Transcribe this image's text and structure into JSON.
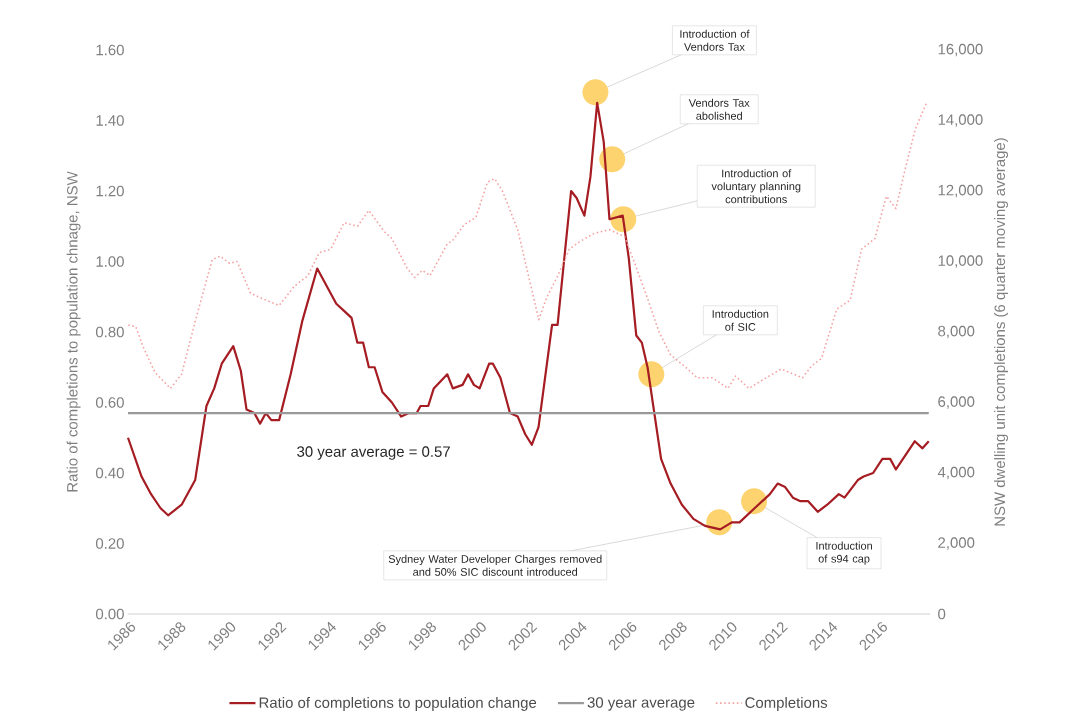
{
  "chart_data": {
    "type": "line",
    "xlabel": null,
    "ylabel": "Ratio of completions to population chnage, NSW",
    "y2label": "NSW dwelling unit completions (6 quarter moving average)",
    "xlim": [
      1986,
      2018
    ],
    "xticks": [
      1986,
      1988,
      1990,
      1992,
      1994,
      1996,
      1998,
      2000,
      2002,
      2004,
      2006,
      2008,
      2010,
      2012,
      2014,
      2016
    ],
    "ylim": [
      0,
      1.6
    ],
    "yticks": [
      {
        "value": 0,
        "label": "0.00"
      },
      {
        "value": 0.2,
        "label": "0.20"
      },
      {
        "value": 0.4,
        "label": "0.40"
      },
      {
        "value": 0.6,
        "label": "0.60"
      },
      {
        "value": 0.8,
        "label": "0.80"
      },
      {
        "value": 1.0,
        "label": "1.00"
      },
      {
        "value": 1.2,
        "label": "1.20"
      },
      {
        "value": 1.4,
        "label": "1.40"
      },
      {
        "value": 1.6,
        "label": "1.60"
      }
    ],
    "y2lim": [
      0,
      16000
    ],
    "y2ticks": [
      0,
      {
        "value": 2000,
        "label": "2,000"
      },
      {
        "value": 4000,
        "label": "4,000"
      },
      {
        "value": 6000,
        "label": "6,000"
      },
      {
        "value": 8000,
        "label": "8,000"
      },
      {
        "value": 10000,
        "label": "10,000"
      },
      {
        "value": 12000,
        "label": "12,000"
      },
      {
        "value": 14000,
        "label": "14,000"
      },
      {
        "value": 16000,
        "label": "16,000"
      }
    ],
    "legend": "bottom",
    "series": [
      {
        "name": "Ratio of completions to population change",
        "color": "#a51c22",
        "line_style": "solid",
        "x": [
          1986.0,
          1986.54,
          1986.92,
          1987.3,
          1987.6,
          1988.14,
          1988.68,
          1989.13,
          1989.44,
          1989.74,
          1990.2,
          1990.5,
          1990.73,
          1991.04,
          1991.27,
          1991.5,
          1991.72,
          1992.03,
          1992.49,
          1992.95,
          1993.55,
          1994.31,
          1994.62,
          1994.92,
          1995.15,
          1995.38,
          1995.61,
          1995.84,
          1996.15,
          1996.53,
          1996.9,
          1997.21,
          1997.52,
          1997.67,
          1997.98,
          1998.2,
          1998.74,
          1998.96,
          1999.35,
          1999.57,
          1999.8,
          2000.03,
          2000.41,
          2000.56,
          2000.86,
          2001.24,
          2001.55,
          2001.85,
          2002.11,
          2002.38,
          2002.92,
          2003.14,
          2003.68,
          2003.9,
          2004.21,
          2004.45,
          2004.72,
          2004.98,
          2005.21,
          2005.74,
          2005.98,
          2006.28,
          2006.5,
          2006.73,
          2007.27,
          2007.65,
          2008.1,
          2008.56,
          2009.02,
          2009.63,
          2010.09,
          2010.4,
          2011.0,
          2011.61,
          2011.92,
          2012.22,
          2012.53,
          2012.83,
          2013.14,
          2013.52,
          2013.9,
          2014.36,
          2014.59,
          2015.12,
          2015.35,
          2015.73,
          2016.1,
          2016.41,
          2016.64,
          2017.39,
          2017.7,
          2017.95
        ],
        "values": [
          0.5,
          0.39,
          0.34,
          0.3,
          0.28,
          0.31,
          0.38,
          0.59,
          0.64,
          0.71,
          0.76,
          0.69,
          0.58,
          0.57,
          0.54,
          0.57,
          0.55,
          0.55,
          0.68,
          0.83,
          0.98,
          0.88,
          0.86,
          0.84,
          0.77,
          0.77,
          0.7,
          0.7,
          0.63,
          0.6,
          0.56,
          0.57,
          0.57,
          0.59,
          0.59,
          0.64,
          0.68,
          0.64,
          0.65,
          0.68,
          0.65,
          0.64,
          0.71,
          0.71,
          0.67,
          0.57,
          0.56,
          0.51,
          0.48,
          0.53,
          0.82,
          0.82,
          1.2,
          1.18,
          1.13,
          1.24,
          1.45,
          1.34,
          1.12,
          1.13,
          1.01,
          0.79,
          0.77,
          0.7,
          0.44,
          0.37,
          0.31,
          0.27,
          0.25,
          0.24,
          0.26,
          0.26,
          0.3,
          0.34,
          0.37,
          0.36,
          0.33,
          0.32,
          0.32,
          0.29,
          0.31,
          0.34,
          0.33,
          0.38,
          0.39,
          0.4,
          0.44,
          0.44,
          0.41,
          0.49,
          0.47,
          0.49
        ]
      },
      {
        "name": "30 year average",
        "color": "#999999",
        "line_style": "solid",
        "x": [
          1986.0,
          2017.95
        ],
        "values": [
          0.57,
          0.57
        ]
      },
      {
        "name": "Completions",
        "color": "#f4a3a3",
        "line_style": "dotted",
        "axis": "y2",
        "x": [
          1986.01,
          1986.31,
          1986.62,
          1987.08,
          1987.69,
          1988.14,
          1988.68,
          1989.36,
          1989.67,
          1990.05,
          1990.35,
          1990.89,
          1991.35,
          1992.03,
          1992.64,
          1993.18,
          1993.63,
          1994.09,
          1994.62,
          1995.16,
          1995.61,
          1996.22,
          1996.53,
          1997.14,
          1997.44,
          1997.75,
          1998.05,
          1998.74,
          1998.96,
          1999.42,
          1999.88,
          2000.34,
          2000.63,
          2000.94,
          2001.55,
          2002.01,
          2002.39,
          2002.69,
          2003.15,
          2003.61,
          2003.99,
          2004.6,
          2005.21,
          2005.82,
          2006.27,
          2006.73,
          2007.19,
          2007.65,
          2008.25,
          2008.71,
          2009.32,
          2009.94,
          2010.24,
          2010.77,
          2011.46,
          2012.07,
          2012.91,
          2013.29,
          2013.67,
          2014.28,
          2014.81,
          2015.27,
          2015.8,
          2016.26,
          2016.64,
          2016.95,
          2017.41,
          2017.86
        ],
        "values": [
          8200,
          8150,
          7550,
          6850,
          6400,
          6800,
          8300,
          10050,
          10150,
          9950,
          10000,
          9100,
          8950,
          8750,
          9300,
          9600,
          10250,
          10350,
          11100,
          11000,
          11450,
          10850,
          10650,
          9800,
          9550,
          9750,
          9600,
          10500,
          10600,
          11050,
          11250,
          12250,
          12350,
          12000,
          10900,
          9500,
          8350,
          8950,
          9600,
          10350,
          10550,
          10800,
          10900,
          10700,
          9850,
          8950,
          8000,
          7350,
          7000,
          6700,
          6700,
          6400,
          6750,
          6400,
          6700,
          6950,
          6700,
          7050,
          7250,
          8650,
          8900,
          10350,
          10650,
          11850,
          11500,
          12450,
          13750,
          14500
        ]
      }
    ],
    "annotations": [
      {
        "text": "Introduction of Vendors Tax",
        "x": 2004.65,
        "y": 1.48
      },
      {
        "text": "Vendors Tax abolished",
        "x": 2005.32,
        "y": 1.29
      },
      {
        "text": "Introduction of voluntary planning contributions",
        "x": 2005.76,
        "y": 1.12
      },
      {
        "text": "Introduction of SIC",
        "x": 2006.88,
        "y": 0.68
      },
      {
        "text": "Sydney Water Developer Charges removed and 50% SIC discount introduced",
        "x": 2009.59,
        "y": 0.26
      },
      {
        "text": "Introduction of s94 cap",
        "x": 2010.98,
        "y": 0.32
      },
      {
        "text": "30 year average  = 0.57",
        "x": 1995.8,
        "y": 0.57
      }
    ]
  }
}
